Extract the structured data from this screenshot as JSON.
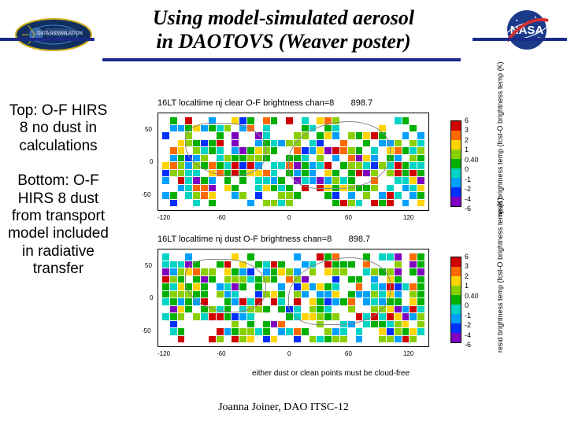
{
  "title_line1": "Using model-simulated aerosol",
  "title_line2": "in DAOTOVS (Weaver poster)",
  "sidebar": {
    "top_block": "Top: O-F HIRS 8 no dust in calculations",
    "bottom_block": "Bottom: O-F HIRS 8 dust from transport model included in radiative transfer"
  },
  "plots": {
    "top": {
      "title": "16LT localtime nj clear O-F brightness chan=8       898.7"
    },
    "bottom": {
      "title": "16LT localtime nj dust O-F brightness chan=8       898.7"
    },
    "footnote": "either dust or clean points must be cloud-free",
    "y_axis_label": "resid brightness temp (fcst-O brightness temp (K)",
    "colorbar": {
      "colors": [
        "#d00000",
        "#ff6a00",
        "#ffd400",
        "#8ad000",
        "#00b000",
        "#00d4c4",
        "#00a0ff",
        "#0030ff",
        "#8000c0"
      ],
      "labels": [
        "6",
        "3",
        "2",
        "1",
        "0.40",
        "0",
        "-1",
        "-2",
        "-4",
        "-6"
      ]
    },
    "x_ticks": [
      "-120",
      "-60",
      "0",
      "60",
      "120"
    ],
    "y_ticks": [
      "50",
      "0",
      "-50"
    ]
  },
  "footer": "Joanna Joiner, DAO ITSC-12",
  "colors": {
    "rule": "#1a2a8a",
    "nasa_red": "#d03030",
    "nasa_blue": "#1a3a8a",
    "dao_bg": "#103060"
  }
}
